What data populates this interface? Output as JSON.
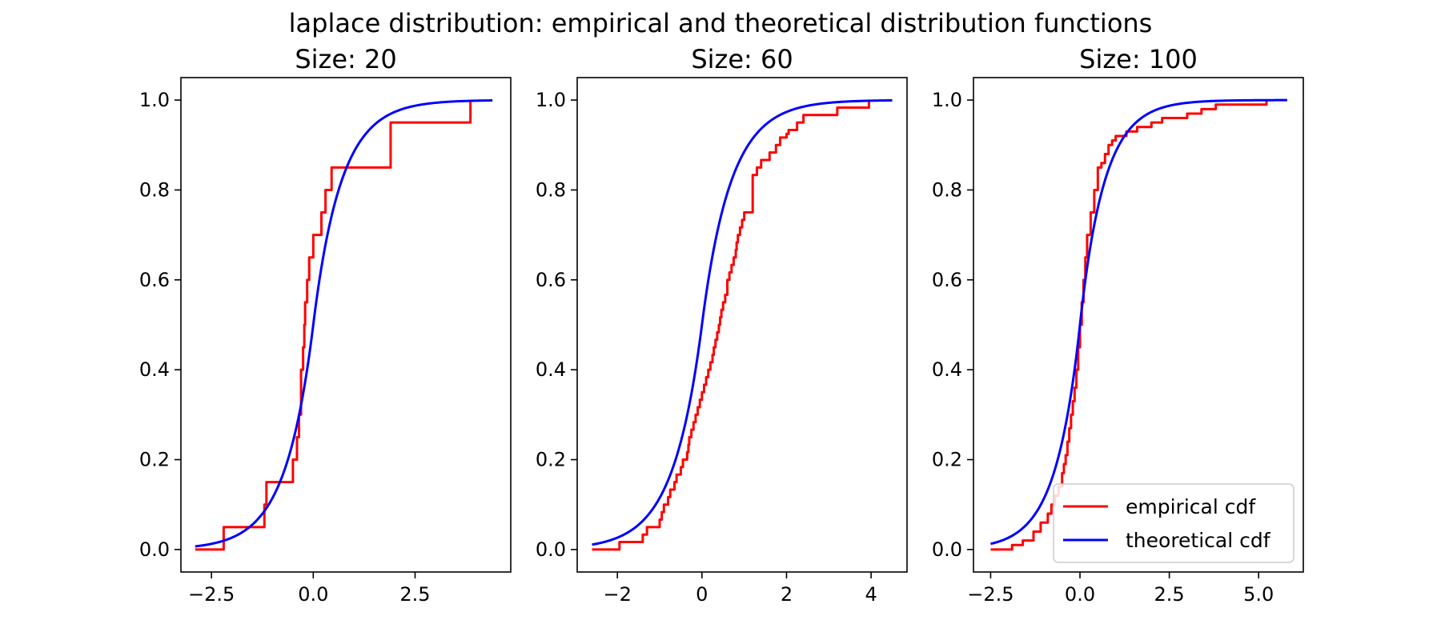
{
  "figure": {
    "suptitle": "laplace distribution: empirical and theoretical distribution functions"
  },
  "legend": {
    "placement": "lower-right",
    "entries": [
      {
        "label": "empirical cdf",
        "color": "#ff0000"
      },
      {
        "label": "theoretical cdf",
        "color": "#0000ff"
      }
    ]
  },
  "chart_data": [
    {
      "type": "line",
      "title": "Size: 20",
      "xlabel": "",
      "ylabel": "",
      "xlim": [
        -3.25,
        4.85
      ],
      "ylim": [
        -0.05,
        1.05
      ],
      "xticks": [
        -2.5,
        0.0,
        2.5
      ],
      "xtick_labels": [
        "−2.5",
        "0.0",
        "2.5"
      ],
      "yticks": [
        0.0,
        0.2,
        0.4,
        0.6,
        0.8,
        1.0
      ],
      "ytick_labels": [
        "0.0",
        "0.2",
        "0.4",
        "0.6",
        "0.8",
        "1.0"
      ],
      "grid": false,
      "series": [
        {
          "name": "empirical cdf",
          "kind": "step",
          "color": "#ff0000",
          "x_range": [
            -2.9,
            3.86
          ],
          "x": [
            -2.2,
            -1.2,
            -1.15,
            -0.5,
            -0.4,
            -0.35,
            -0.3,
            -0.25,
            -0.22,
            -0.2,
            -0.15,
            -0.1,
            0.0,
            0.2,
            0.3,
            0.45,
            0.65,
            1.9,
            3.86
          ],
          "y": [
            0.05,
            0.1,
            0.15,
            0.2,
            0.25,
            0.3,
            0.4,
            0.45,
            0.5,
            0.55,
            0.6,
            0.65,
            0.7,
            0.75,
            0.8,
            0.85,
            0.85,
            0.95,
            1.0
          ]
        },
        {
          "name": "theoretical cdf",
          "kind": "function",
          "color": "#0000ff",
          "x_range": [
            -2.9,
            4.4
          ],
          "mu": 0.0,
          "b": 0.68
        }
      ]
    },
    {
      "type": "line",
      "title": "Size: 60",
      "xlabel": "",
      "ylabel": "",
      "xlim": [
        -2.95,
        4.85
      ],
      "ylim": [
        -0.05,
        1.05
      ],
      "xticks": [
        -2,
        0,
        2,
        4
      ],
      "xtick_labels": [
        "−2",
        "0",
        "2",
        "4"
      ],
      "yticks": [
        0.0,
        0.2,
        0.4,
        0.6,
        0.8,
        1.0
      ],
      "ytick_labels": [
        "0.0",
        "0.2",
        "0.4",
        "0.6",
        "0.8",
        "1.0"
      ],
      "grid": false,
      "series": [
        {
          "name": "empirical cdf",
          "kind": "step",
          "color": "#ff0000",
          "x_range": [
            -2.6,
            3.95
          ],
          "x": [
            -1.95,
            -1.4,
            -1.3,
            -1.0,
            -0.95,
            -0.9,
            -0.8,
            -0.75,
            -0.65,
            -0.6,
            -0.5,
            -0.45,
            -0.35,
            -0.32,
            -0.3,
            -0.25,
            -0.2,
            -0.15,
            -0.1,
            -0.05,
            0.0,
            0.05,
            0.1,
            0.15,
            0.2,
            0.25,
            0.28,
            0.32,
            0.36,
            0.4,
            0.43,
            0.46,
            0.5,
            0.55,
            0.6,
            0.65,
            0.7,
            0.75,
            0.8,
            0.82,
            0.85,
            0.9,
            0.95,
            1.0,
            1.2,
            1.3,
            1.4,
            1.6,
            1.75,
            1.85,
            2.0,
            2.05,
            2.1,
            2.25,
            2.3,
            2.4,
            3.2,
            3.95
          ],
          "y": [
            0.0167,
            0.0333,
            0.05,
            0.0667,
            0.0833,
            0.1,
            0.1167,
            0.1333,
            0.15,
            0.1667,
            0.1833,
            0.2,
            0.2167,
            0.2333,
            0.25,
            0.2667,
            0.2833,
            0.3,
            0.3167,
            0.3333,
            0.35,
            0.3667,
            0.3833,
            0.4,
            0.4167,
            0.4333,
            0.45,
            0.4667,
            0.4833,
            0.5,
            0.5167,
            0.5333,
            0.55,
            0.5667,
            0.6,
            0.6167,
            0.6333,
            0.65,
            0.6667,
            0.6833,
            0.7,
            0.7167,
            0.7333,
            0.75,
            0.8333,
            0.85,
            0.8667,
            0.8833,
            0.9,
            0.9167,
            0.925,
            0.9333,
            0.9333,
            0.95,
            0.95,
            0.9667,
            0.9833,
            1.0
          ]
        },
        {
          "name": "theoretical cdf",
          "kind": "function",
          "color": "#0000ff",
          "x_range": [
            -2.6,
            4.5
          ],
          "mu": 0.0,
          "b": 0.68
        }
      ]
    },
    {
      "type": "line",
      "title": "Size: 100",
      "xlabel": "",
      "ylabel": "",
      "xlim": [
        -2.98,
        6.25
      ],
      "ylim": [
        -0.05,
        1.05
      ],
      "xticks": [
        -2.5,
        0.0,
        2.5,
        5.0
      ],
      "xtick_labels": [
        "−2.5",
        "0.0",
        "2.5",
        "5.0"
      ],
      "yticks": [
        0.0,
        0.2,
        0.4,
        0.6,
        0.8,
        1.0
      ],
      "ytick_labels": [
        "0.0",
        "0.2",
        "0.4",
        "0.6",
        "0.8",
        "1.0"
      ],
      "grid": false,
      "series": [
        {
          "name": "empirical cdf",
          "kind": "step",
          "color": "#ff0000",
          "x_range": [
            -2.5,
            5.22
          ],
          "x": [
            -1.9,
            -1.6,
            -1.3,
            -1.1,
            -0.9,
            -0.8,
            -0.7,
            -0.6,
            -0.5,
            -0.45,
            -0.4,
            -0.35,
            -0.3,
            -0.25,
            -0.2,
            -0.15,
            -0.1,
            -0.05,
            0.0,
            0.05,
            0.1,
            0.15,
            0.2,
            0.3,
            0.4,
            0.5,
            0.6,
            0.7,
            0.8,
            0.9,
            1.0,
            1.1,
            1.3,
            1.6,
            1.8,
            2.0,
            2.3,
            3.0,
            3.4,
            3.8,
            5.22
          ],
          "y": [
            0.01,
            0.02,
            0.04,
            0.06,
            0.08,
            0.1,
            0.12,
            0.14,
            0.17,
            0.19,
            0.21,
            0.24,
            0.27,
            0.3,
            0.33,
            0.36,
            0.4,
            0.45,
            0.5,
            0.55,
            0.6,
            0.65,
            0.7,
            0.75,
            0.8,
            0.85,
            0.86,
            0.88,
            0.9,
            0.91,
            0.92,
            0.92,
            0.93,
            0.94,
            0.94,
            0.95,
            0.96,
            0.97,
            0.98,
            0.99,
            1.0
          ]
        },
        {
          "name": "theoretical cdf",
          "kind": "function",
          "color": "#0000ff",
          "x_range": [
            -2.5,
            5.8
          ],
          "mu": 0.0,
          "b": 0.68
        }
      ]
    }
  ]
}
